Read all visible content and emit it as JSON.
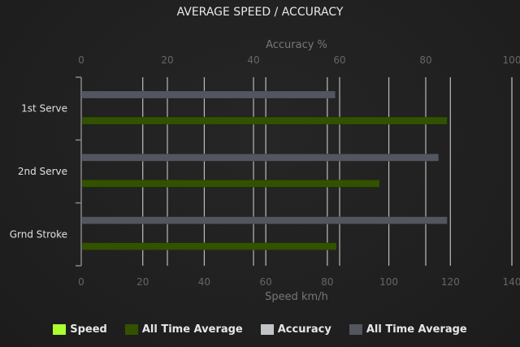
{
  "chart_data": {
    "type": "bar",
    "orientation": "horizontal",
    "title": "AVERAGE SPEED / ACCURACY",
    "categories": [
      "1st Serve",
      "2nd Serve",
      "Grnd Stroke"
    ],
    "x_axis_bottom": {
      "label": "Speed km/h",
      "range": [
        0,
        140
      ],
      "ticks": [
        0,
        20,
        40,
        60,
        80,
        100,
        120,
        140
      ]
    },
    "x_axis_top": {
      "label": "Accuracy %",
      "range": [
        0,
        100
      ],
      "ticks": [
        0,
        20,
        40,
        60,
        80,
        100
      ]
    },
    "grid": true,
    "legend_placement": "bottom",
    "series": [
      {
        "name": "Speed",
        "axis": "speed",
        "color": "#adff2f",
        "values": [
          null,
          null,
          null
        ]
      },
      {
        "name": "All Time Average",
        "axis": "speed",
        "color": "#335200",
        "values": [
          119,
          97,
          83
        ]
      },
      {
        "name": "Accuracy",
        "axis": "accuracy",
        "color": "#c0c4c8",
        "values": [
          null,
          null,
          null
        ]
      },
      {
        "name": "All Time Average",
        "axis": "accuracy",
        "color": "#52565e",
        "values": [
          59,
          83,
          85
        ]
      }
    ]
  }
}
